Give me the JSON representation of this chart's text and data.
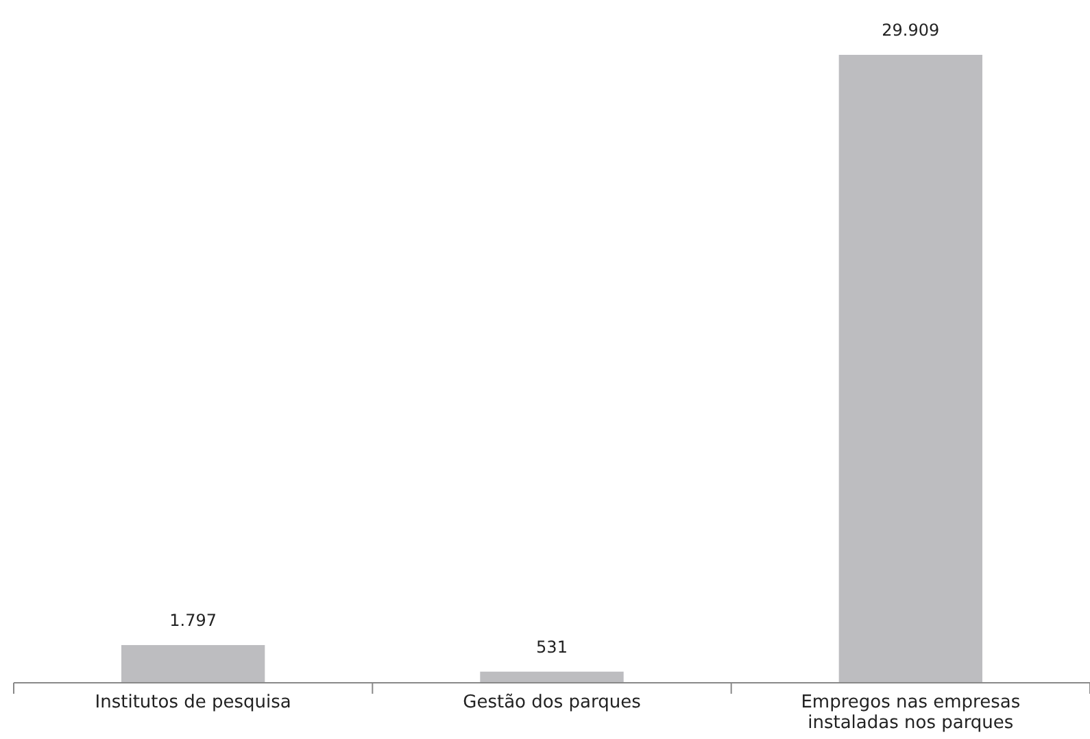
{
  "chart_data": {
    "type": "bar",
    "categories": [
      "Institutos de pesquisa",
      "Gestão dos parques",
      "Empregos nas empresas instaladas nos parques"
    ],
    "values": [
      1797,
      531,
      29909
    ],
    "value_labels": [
      "1.797",
      "531",
      "29.909"
    ],
    "color": "#bdbdc0"
  }
}
